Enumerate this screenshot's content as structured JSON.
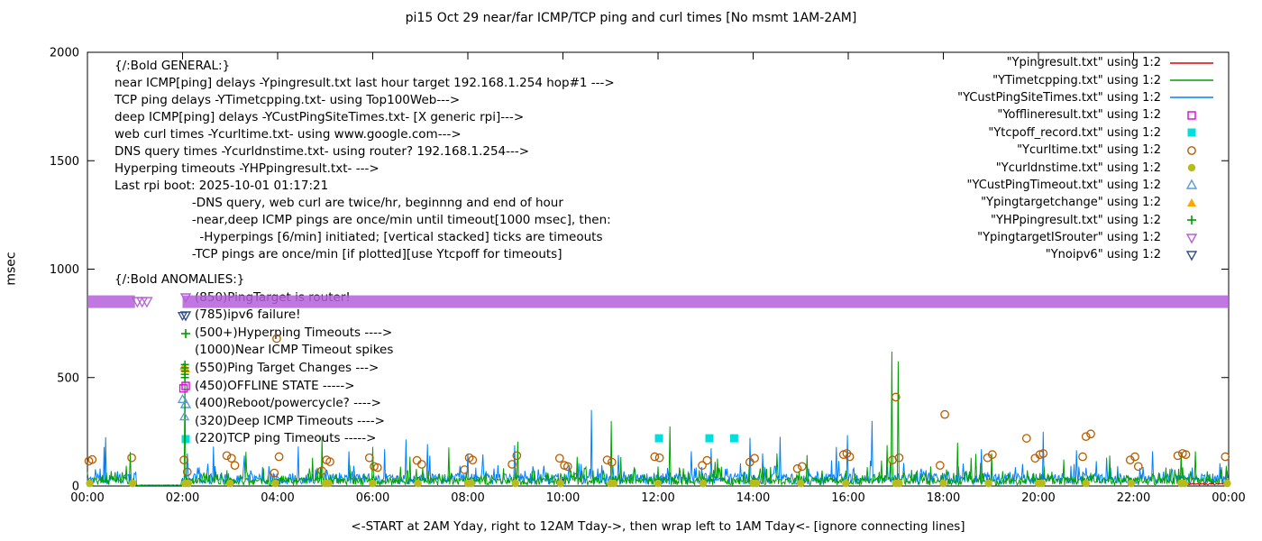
{
  "title": "pi15 Oct 29  near/far ICMP/TCP ping and curl times [No msmt 1AM-2AM]",
  "axes": {
    "ylabel": "msec",
    "xlabel": "<-START at 2AM Yday, right to 12AM Tday->, then wrap left to 1AM Tday<- [ignore connecting lines]"
  },
  "annotations": {
    "general_lines": [
      "{/:Bold GENERAL:}",
      "near ICMP[ping] delays -Ypingresult.txt last hour target 192.168.1.254 hop#1 --->",
      "TCP ping delays -YTimetcpping.txt- using Top100Web--->",
      "deep ICMP[ping] delays -YCustPingSiteTimes.txt- [X generic rpi]--->",
      "web curl times -Ycurltime.txt- using www.google.com--->",
      "DNS query times -Ycurldnstime.txt- using router? 192.168.1.254--->",
      "Hyperping timeouts -YHPpingresult.txt- --->",
      "Last rpi boot: 2025-10-01 01:17:21",
      "                    -DNS query, web curl are twice/hr, beginnng and end of hour",
      "                    -near,deep ICMP pings are once/min until timeout[1000 msec], then:",
      "                      -Hyperpings [6/min] initiated; [vertical stacked] ticks are timeouts",
      "                    -TCP pings are once/min [if plotted][use Ytcpoff for timeouts]"
    ],
    "anomalies_title": "{/:Bold ANOMALIES:}",
    "anomalies": [
      {
        "marker": "triangle-down-open",
        "color": "#b55fd9",
        "text": "(850)PingTarget is router!"
      },
      {
        "marker": "triangle-down-open",
        "color": "#30508c",
        "text": "(785)ipv6 failure!"
      },
      {
        "marker": "plus",
        "color": "#009900",
        "text": "(500+)Hyperping Timeouts ---->"
      },
      {
        "marker": null,
        "color": null,
        "text": "(1000)Near ICMP Timeout spikes"
      },
      {
        "marker": "triangle-up-filled",
        "color": "#ffa500",
        "text": "(550)Ping Target Changes --->"
      },
      {
        "marker": "square-open",
        "color": "#e000e0",
        "text": "(450)OFFLINE STATE ----->"
      },
      {
        "marker": "triangle-up-open",
        "color": "#5b9bd5",
        "text": "(400)Reboot/powercycle? ---->"
      },
      {
        "marker": null,
        "color": null,
        "text": "(320)Deep ICMP Timeouts ---->"
      },
      {
        "marker": "square-filled",
        "color": "#00dede",
        "text": "(220)TCP ping Timeouts ----->"
      }
    ]
  },
  "chart_data": {
    "type": "line",
    "ylim": [
      0,
      2000
    ],
    "x_hours_range": [
      0,
      24
    ],
    "no_measurement_window_hours": [
      1,
      2
    ],
    "grid": false,
    "legend_position": "top-right-inside",
    "y_ticks": [
      0,
      500,
      1000,
      1500,
      2000
    ],
    "x_tick_hours": [
      0,
      2,
      4,
      6,
      8,
      10,
      12,
      14,
      16,
      18,
      20,
      22,
      24
    ],
    "x_tick_labels": [
      "00:00",
      "02:00",
      "04:00",
      "06:00",
      "08:00",
      "10:00",
      "12:00",
      "14:00",
      "16:00",
      "18:00",
      "20:00",
      "22:00",
      "00:00"
    ],
    "legend": [
      {
        "label": "\"Ypingresult.txt\" using 1:2",
        "marker": "line",
        "color": "#e00000"
      },
      {
        "label": "\"YTimetcpping.txt\" using 1:2",
        "marker": "line",
        "color": "#00a000"
      },
      {
        "label": "\"YCustPingSiteTimes.txt\" using 1:2",
        "marker": "line",
        "color": "#0080ff"
      },
      {
        "label": "\"Yofflineresult.txt\" using 1:2",
        "marker": "square-open",
        "color": "#e000e0"
      },
      {
        "label": "\"Ytcpoff_record.txt\" using 1:2",
        "marker": "square-filled",
        "color": "#00dede"
      },
      {
        "label": "\"Ycurltime.txt\" using 1:2",
        "marker": "circle-open",
        "color": "#b85c00"
      },
      {
        "label": "\"Ycurldnstime.txt\" using 1:2",
        "marker": "circle-filled",
        "color": "#b8bc1a"
      },
      {
        "label": "\"YCustPingTimeout.txt\" using 1:2",
        "marker": "triangle-up-open",
        "color": "#5b9bd5"
      },
      {
        "label": "\"Ypingtargetchange\" using 1:2",
        "marker": "triangle-up-filled",
        "color": "#ffa500"
      },
      {
        "label": "\"YHPpingresult.txt\" using 1:2",
        "marker": "plus",
        "color": "#009900"
      },
      {
        "label": "\"YpingtargetISrouter\" using 1:2",
        "marker": "triangle-down-open",
        "color": "#b55fd9"
      },
      {
        "label": "\"Ynoipv6\" using 1:2",
        "marker": "triangle-down-open",
        "color": "#30508c"
      }
    ],
    "series": {
      "near_icmp_line": {
        "color": "#e00000",
        "desc": "near ICMP ping msec, plotted last hour only",
        "window_hours": [
          23,
          24
        ],
        "base_msec": 8
      },
      "tcp_ping_line": {
        "color": "#00a000",
        "base_range_msec": [
          4,
          40
        ],
        "spike_points": [
          [
            2.05,
            505
          ],
          [
            4.93,
            230
          ],
          [
            6.0,
            180
          ],
          [
            9.05,
            205
          ],
          [
            11.02,
            300
          ],
          [
            12.25,
            275
          ],
          [
            14.5,
            150
          ],
          [
            16.92,
            620
          ],
          [
            17.05,
            575
          ],
          [
            18.3,
            200
          ],
          [
            19.02,
            150
          ],
          [
            21.5,
            140
          ],
          [
            23.3,
            160
          ]
        ]
      },
      "deep_icmp_line": {
        "color": "#0080ff",
        "base_range_msec": [
          8,
          58
        ],
        "spike_points": [
          [
            0.35,
            180
          ],
          [
            2.1,
            150
          ],
          [
            3.3,
            140
          ],
          [
            5.5,
            160
          ],
          [
            7.2,
            140
          ],
          [
            8.0,
            150
          ],
          [
            10.6,
            350
          ],
          [
            12.7,
            160
          ],
          [
            14.2,
            150
          ],
          [
            16.5,
            300
          ],
          [
            18.8,
            170
          ],
          [
            20.1,
            250
          ],
          [
            22.4,
            160
          ]
        ]
      },
      "web_curl_circles": {
        "color": "#b85c00",
        "points": [
          [
            0.03,
            115
          ],
          [
            0.1,
            122
          ],
          [
            0.93,
            130
          ],
          [
            2.03,
            120
          ],
          [
            2.1,
            65
          ],
          [
            2.93,
            140
          ],
          [
            3.03,
            128
          ],
          [
            3.1,
            95
          ],
          [
            3.93,
            60
          ],
          [
            3.98,
            680
          ],
          [
            4.03,
            135
          ],
          [
            4.93,
            70
          ],
          [
            5.03,
            120
          ],
          [
            5.1,
            112
          ],
          [
            5.93,
            130
          ],
          [
            6.03,
            90
          ],
          [
            6.1,
            85
          ],
          [
            6.93,
            118
          ],
          [
            7.03,
            100
          ],
          [
            7.93,
            75
          ],
          [
            8.03,
            130
          ],
          [
            8.1,
            120
          ],
          [
            8.93,
            100
          ],
          [
            9.03,
            140
          ],
          [
            9.93,
            128
          ],
          [
            10.03,
            95
          ],
          [
            10.1,
            90
          ],
          [
            10.93,
            120
          ],
          [
            11.03,
            110
          ],
          [
            11.93,
            135
          ],
          [
            12.03,
            130
          ],
          [
            12.93,
            95
          ],
          [
            13.03,
            118
          ],
          [
            13.93,
            110
          ],
          [
            14.03,
            128
          ],
          [
            14.93,
            80
          ],
          [
            15.03,
            90
          ],
          [
            15.9,
            145
          ],
          [
            15.97,
            150
          ],
          [
            16.03,
            135
          ],
          [
            16.93,
            120
          ],
          [
            17.0,
            410
          ],
          [
            17.07,
            130
          ],
          [
            17.93,
            95
          ],
          [
            18.03,
            330
          ],
          [
            18.93,
            130
          ],
          [
            19.03,
            145
          ],
          [
            19.75,
            220
          ],
          [
            19.93,
            128
          ],
          [
            20.03,
            145
          ],
          [
            20.1,
            150
          ],
          [
            20.93,
            135
          ],
          [
            21.0,
            228
          ],
          [
            21.1,
            240
          ],
          [
            21.93,
            120
          ],
          [
            22.03,
            135
          ],
          [
            22.1,
            90
          ],
          [
            22.93,
            140
          ],
          [
            23.03,
            150
          ],
          [
            23.1,
            145
          ],
          [
            23.93,
            135
          ]
        ]
      },
      "dns_query_circles": {
        "color": "#b8bc1a",
        "value_msec": 12,
        "times_hours": [
          0.05,
          0.95,
          2.05,
          2.12,
          3.0,
          3.95,
          5.0,
          5.07,
          6.0,
          6.95,
          8.0,
          8.07,
          9.0,
          9.95,
          11.0,
          11.07,
          12.0,
          12.95,
          14.0,
          14.07,
          15.0,
          15.95,
          17.0,
          17.07,
          18.0,
          18.95,
          20.0,
          20.07,
          21.0,
          21.95,
          23.0,
          23.07,
          23.97
        ]
      },
      "tcp_timeout_squares": {
        "color": "#00dede",
        "points": [
          [
            12.02,
            220
          ],
          [
            13.08,
            220
          ],
          [
            13.6,
            220
          ]
        ]
      },
      "offline_squares": {
        "color": "#e000e0",
        "points": [
          [
            2.02,
            450
          ]
        ]
      },
      "deep_icmp_timeout_triangles": {
        "color": "#5b9bd5",
        "points": [
          [
            2.0,
            400
          ],
          [
            2.04,
            320
          ]
        ]
      },
      "ping_target_change_triangles": {
        "color": "#ffa500",
        "points": [
          [
            2.02,
            550
          ]
        ]
      },
      "hyperping_plus": {
        "color": "#009900",
        "points": [
          [
            2.05,
            500
          ],
          [
            2.05,
            515
          ],
          [
            2.05,
            530
          ],
          [
            2.05,
            545
          ],
          [
            2.05,
            560
          ]
        ]
      },
      "noipv6_triangles": {
        "color": "#30508c",
        "points": [
          [
            2.0,
            785
          ]
        ]
      },
      "pingtarget_router_band": {
        "color": "#b55fd9",
        "value_msec": 850,
        "segments_hours": [
          [
            0,
            1.0
          ],
          [
            2.0,
            24
          ]
        ],
        "extra_triangles_hours": [
          1.05,
          1.15,
          1.25
        ],
        "note": "dense overlapping down-triangles forming a solid band at 850 msec"
      }
    }
  }
}
